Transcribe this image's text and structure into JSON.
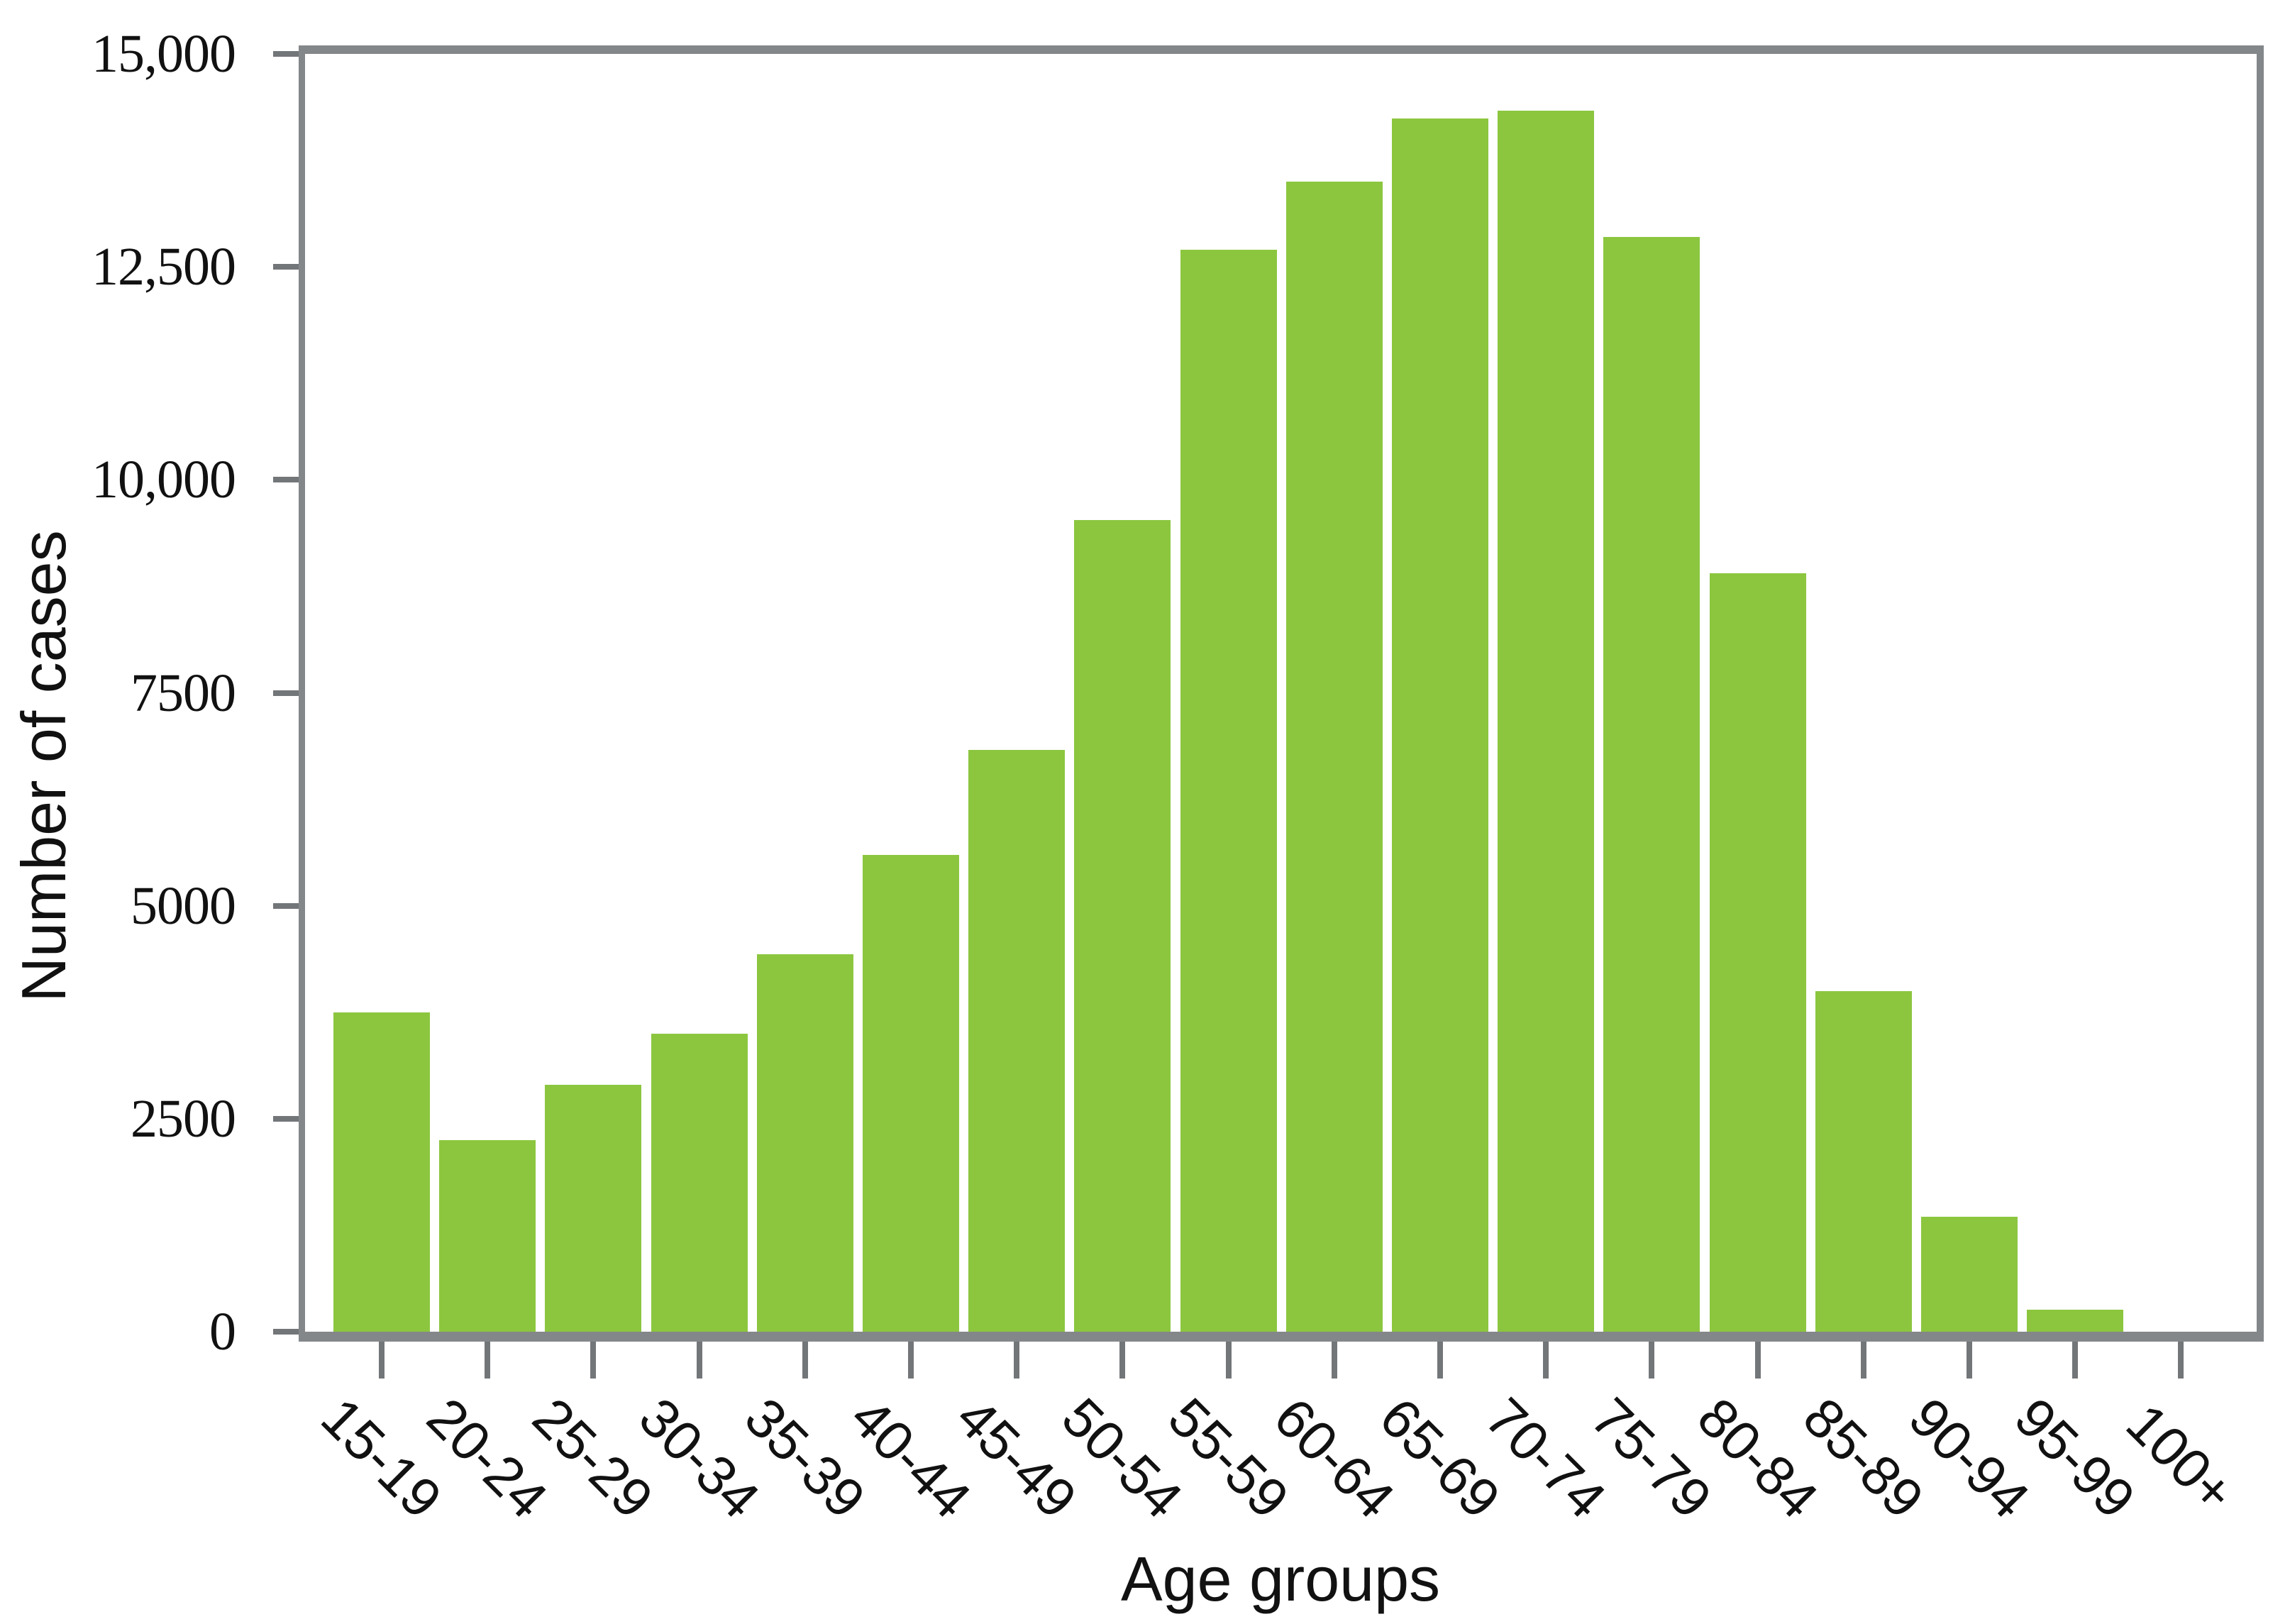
{
  "chart_data": {
    "type": "bar",
    "title": "",
    "xlabel": "Age groups",
    "ylabel": "Number of cases",
    "categories": [
      "15-19",
      "20-24",
      "25-29",
      "30-34",
      "35-39",
      "40-44",
      "45-49",
      "50-54",
      "55-59",
      "60-64",
      "65-69",
      "70-74",
      "75-79",
      "80-84",
      "85-89",
      "90-94",
      "95-99",
      "100+"
    ],
    "values": [
      3750,
      2250,
      2900,
      3500,
      4430,
      5600,
      6830,
      9530,
      12700,
      13500,
      14240,
      14330,
      12850,
      8900,
      4000,
      1350,
      260,
      0
    ],
    "ylim": [
      0,
      15000
    ],
    "y_ticks": {
      "values": [
        0,
        2500,
        5000,
        7500,
        10000,
        12500,
        15000
      ],
      "labels": [
        "0",
        "2500",
        "5000",
        "7500",
        "10,000",
        "12,500",
        "15,000"
      ]
    },
    "grid": false,
    "legend": null,
    "bar_color": "#8CC63F",
    "axis_color": "#84878A",
    "tick_color": "#737679",
    "text_color": "#111111"
  }
}
